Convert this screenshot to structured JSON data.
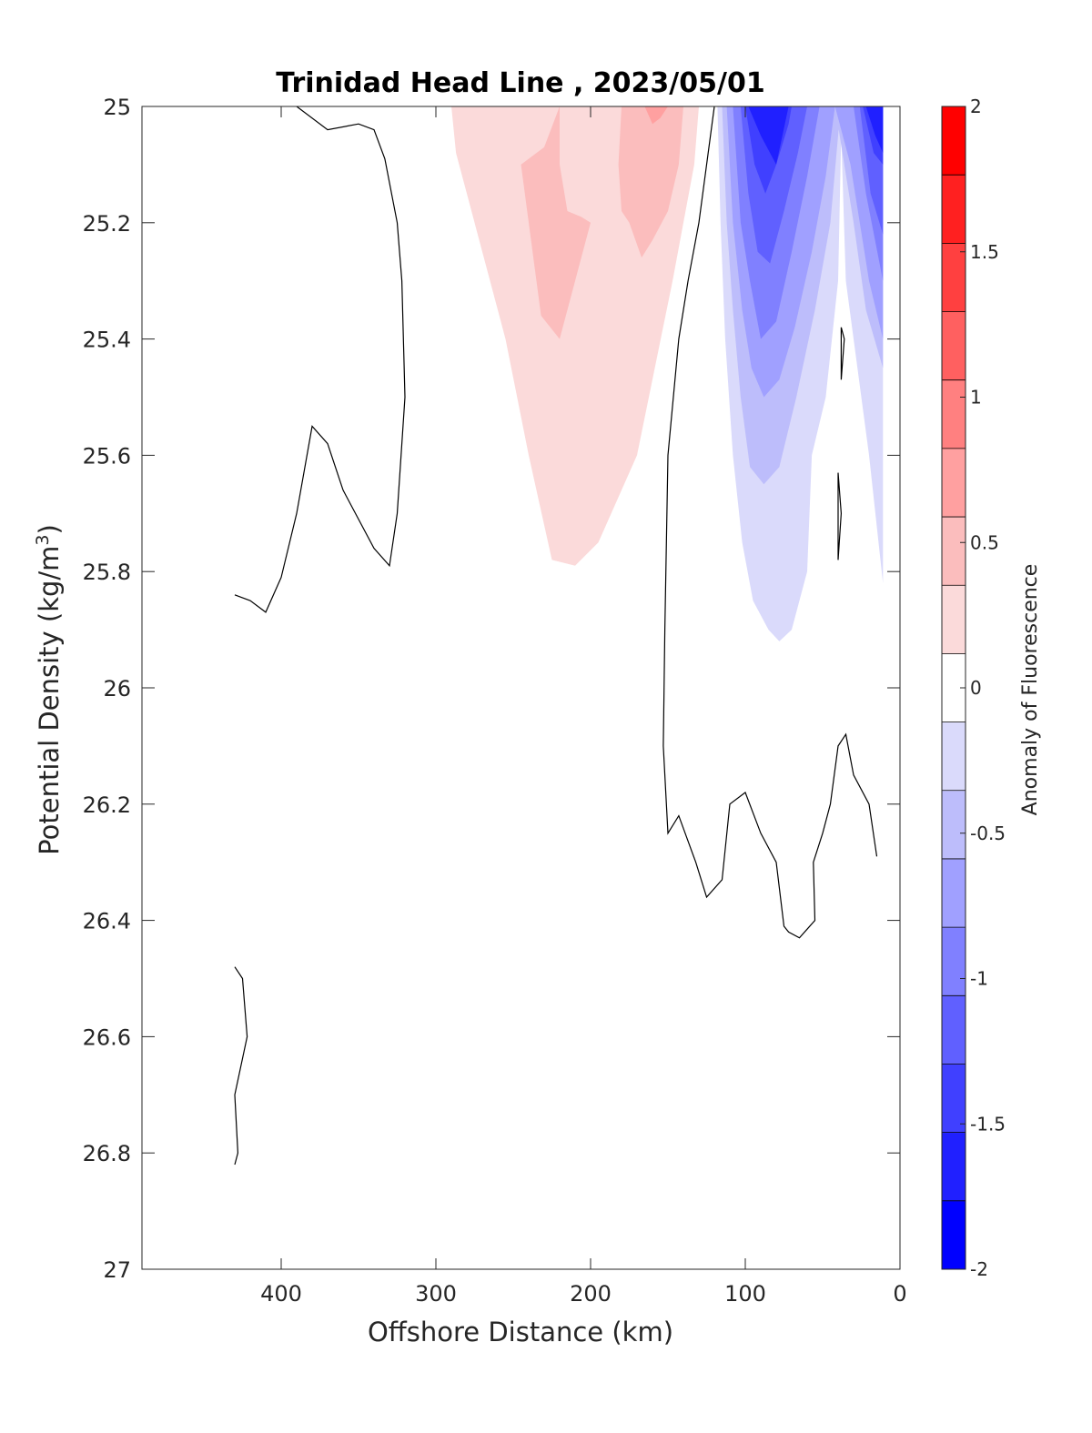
{
  "chart_data": {
    "type": "contour",
    "title": "Trinidad Head Line , 2023/05/01",
    "xlabel": "Offshore Distance (km)",
    "ylabel_main": "Potential Density (kg/m",
    "ylabel_sup": "3",
    "ylabel_close": ")",
    "xlim": [
      490,
      0
    ],
    "ylim": [
      25,
      27
    ],
    "x_reversed": true,
    "y_reversed": true,
    "xticks": [
      400,
      300,
      200,
      100,
      0
    ],
    "yticks": [
      25,
      25.2,
      25.4,
      25.6,
      25.8,
      26,
      26.2,
      26.4,
      26.6,
      26.8,
      27
    ],
    "xtick_labels": [
      "400",
      "300",
      "200",
      "100",
      "0"
    ],
    "ytick_labels": [
      "25",
      "25.2",
      "25.4",
      "25.6",
      "25.8",
      "26",
      "26.2",
      "26.4",
      "26.6",
      "26.8",
      "27"
    ],
    "grid": false,
    "colorbar": {
      "label": "Anomaly of Fluorescence",
      "range": [
        -2,
        2
      ],
      "levels": [
        -2,
        -1.75,
        -1.5,
        -1.25,
        -1,
        -0.75,
        -0.5,
        -0.25,
        0.25,
        0.5,
        0.75,
        1,
        1.25,
        1.5,
        1.75,
        2
      ],
      "colors_bottom_to_top": [
        "#0000ff",
        "#2020ff",
        "#4040ff",
        "#6060ff",
        "#8080ff",
        "#a0a0ff",
        "#bdbdfb",
        "#dadafb",
        "#ffffff",
        "#fbdada",
        "#fbbdbd",
        "#ffa0a0",
        "#ff8080",
        "#ff6060",
        "#ff4040",
        "#ff2020",
        "#ff0000"
      ],
      "tick_values": [
        2,
        1.5,
        1,
        0.5,
        0,
        -0.5,
        -1,
        -1.5,
        -2
      ],
      "tick_labels": [
        "2",
        "1.5",
        "1",
        "0.5",
        "0",
        "-0.5",
        "-1",
        "-1.5",
        "-2"
      ]
    },
    "filled_regions": [
      {
        "name": "positive-0.25",
        "level": 0.25,
        "color": "#fbdada",
        "points": [
          [
            290,
            25
          ],
          [
            130,
            25
          ],
          [
            133,
            25.1
          ],
          [
            147,
            25.3
          ],
          [
            170,
            25.6
          ],
          [
            195,
            25.75
          ],
          [
            210,
            25.79
          ],
          [
            225,
            25.78
          ],
          [
            240,
            25.6
          ],
          [
            255,
            25.4
          ],
          [
            275,
            25.2
          ],
          [
            287,
            25.08
          ]
        ]
      },
      {
        "name": "positive-0.5-a",
        "level": 0.5,
        "color": "#fbbdbd",
        "points": [
          [
            245,
            25.1
          ],
          [
            240,
            25.2
          ],
          [
            235,
            25.3
          ],
          [
            232,
            25.36
          ],
          [
            220,
            25.4
          ],
          [
            210,
            25.3
          ],
          [
            200,
            25.2
          ],
          [
            206,
            25.19
          ],
          [
            215,
            25.18
          ],
          [
            220,
            25.1
          ],
          [
            220,
            25
          ],
          [
            230,
            25.07
          ]
        ]
      },
      {
        "name": "positive-0.5-b",
        "level": 0.5,
        "color": "#fbbdbd",
        "points": [
          [
            180,
            25
          ],
          [
            140,
            25
          ],
          [
            143,
            25.1
          ],
          [
            150,
            25.18
          ],
          [
            160,
            25.23
          ],
          [
            167,
            25.26
          ],
          [
            175,
            25.2
          ],
          [
            180,
            25.18
          ],
          [
            182,
            25.1
          ]
        ]
      },
      {
        "name": "positive-0.75",
        "level": 0.75,
        "color": "#ffa0a0",
        "points": [
          [
            165,
            25
          ],
          [
            150,
            25
          ],
          [
            155,
            25.02
          ],
          [
            160,
            25.03
          ]
        ]
      },
      {
        "name": "negative-0.25",
        "level": -0.25,
        "color": "#dadafb",
        "points": [
          [
            118,
            25
          ],
          [
            116,
            25.2
          ],
          [
            113,
            25.4
          ],
          [
            108,
            25.6
          ],
          [
            102,
            25.75
          ],
          [
            95,
            25.85
          ],
          [
            85,
            25.9
          ],
          [
            78,
            25.92
          ],
          [
            70,
            25.9
          ],
          [
            60,
            25.8
          ],
          [
            57,
            25.6
          ],
          [
            48,
            25.5
          ],
          [
            40,
            25.3
          ],
          [
            38,
            25.05
          ],
          [
            35,
            25.3
          ],
          [
            30,
            25.4
          ],
          [
            20,
            25.6
          ],
          [
            11,
            25.82
          ],
          [
            11,
            25
          ]
        ]
      },
      {
        "name": "negative-0.5",
        "level": -0.5,
        "color": "#bdbdfb",
        "points": [
          [
            115,
            25
          ],
          [
            112,
            25.2
          ],
          [
            108,
            25.35
          ],
          [
            103,
            25.5
          ],
          [
            97,
            25.62
          ],
          [
            88,
            25.65
          ],
          [
            78,
            25.62
          ],
          [
            67,
            25.5
          ],
          [
            55,
            25.35
          ],
          [
            45,
            25.2
          ],
          [
            39,
            25.02
          ],
          [
            42,
            25
          ],
          [
            30,
            25.2
          ],
          [
            22,
            25.35
          ],
          [
            11,
            25.45
          ],
          [
            11,
            25
          ]
        ]
      },
      {
        "name": "negative-0.75",
        "level": -0.75,
        "color": "#a0a0ff",
        "points": [
          [
            112,
            25
          ],
          [
            108,
            25.2
          ],
          [
            102,
            25.35
          ],
          [
            96,
            25.45
          ],
          [
            88,
            25.5
          ],
          [
            78,
            25.47
          ],
          [
            68,
            25.38
          ],
          [
            57,
            25.25
          ],
          [
            48,
            25.12
          ],
          [
            42,
            25
          ],
          [
            32,
            25.1
          ],
          [
            20,
            25.3
          ],
          [
            11,
            25.4
          ],
          [
            11,
            25
          ]
        ]
      },
      {
        "name": "negative-1",
        "level": -1,
        "color": "#8080ff",
        "points": [
          [
            108,
            25
          ],
          [
            103,
            25.2
          ],
          [
            97,
            25.3
          ],
          [
            90,
            25.4
          ],
          [
            80,
            25.37
          ],
          [
            70,
            25.25
          ],
          [
            60,
            25.12
          ],
          [
            52,
            25
          ],
          [
            30,
            25
          ],
          [
            22,
            25.15
          ],
          [
            11,
            25.3
          ],
          [
            11,
            25
          ]
        ]
      },
      {
        "name": "negative-1.25",
        "level": -1.25,
        "color": "#6060ff",
        "points": [
          [
            103,
            25
          ],
          [
            98,
            25.15
          ],
          [
            92,
            25.25
          ],
          [
            84,
            25.27
          ],
          [
            75,
            25.18
          ],
          [
            66,
            25.08
          ],
          [
            60,
            25
          ],
          [
            26,
            25
          ],
          [
            19,
            25.15
          ],
          [
            11,
            25.22
          ],
          [
            11,
            25
          ]
        ]
      },
      {
        "name": "negative-1.5",
        "level": -1.5,
        "color": "#4040ff",
        "points": [
          [
            100,
            25
          ],
          [
            94,
            25.1
          ],
          [
            87,
            25.15
          ],
          [
            80,
            25.1
          ],
          [
            72,
            25.03
          ],
          [
            70,
            25
          ],
          [
            24,
            25
          ],
          [
            17,
            25.08
          ],
          [
            11,
            25.1
          ],
          [
            11,
            25
          ]
        ]
      },
      {
        "name": "negative-1.75",
        "level": -1.75,
        "color": "#2020ff",
        "points": [
          [
            98,
            25
          ],
          [
            90,
            25.05
          ],
          [
            80,
            25.1
          ],
          [
            72,
            25
          ],
          [
            22,
            25
          ],
          [
            16,
            25.05
          ],
          [
            11,
            25.08
          ],
          [
            11,
            25
          ]
        ]
      }
    ],
    "zero_contours": [
      {
        "name": "zero-contour-left",
        "points": [
          [
            430,
            25.84
          ],
          [
            420,
            25.85
          ],
          [
            410,
            25.87
          ],
          [
            400,
            25.81
          ],
          [
            390,
            25.7
          ],
          [
            380,
            25.55
          ],
          [
            370,
            25.58
          ],
          [
            360,
            25.66
          ],
          [
            340,
            25.76
          ],
          [
            330,
            25.79
          ],
          [
            325,
            25.7
          ],
          [
            320,
            25.5
          ],
          [
            322,
            25.3
          ],
          [
            325,
            25.2
          ],
          [
            333,
            25.09
          ],
          [
            340,
            25.04
          ],
          [
            350,
            25.03
          ],
          [
            370,
            25.04
          ],
          [
            390,
            25
          ]
        ]
      },
      {
        "name": "zero-contour-middle",
        "points": [
          [
            120,
            25
          ],
          [
            130,
            25.2
          ],
          [
            137,
            25.3
          ],
          [
            143,
            25.4
          ],
          [
            150,
            25.6
          ],
          [
            152,
            25.9
          ],
          [
            153,
            26.1
          ],
          [
            150,
            26.25
          ],
          [
            143,
            26.22
          ],
          [
            132,
            26.3
          ],
          [
            125,
            26.36
          ],
          [
            115,
            26.33
          ],
          [
            110,
            26.2
          ],
          [
            100,
            26.18
          ],
          [
            90,
            26.25
          ],
          [
            80,
            26.3
          ],
          [
            75,
            26.41
          ],
          [
            72,
            26.42
          ],
          [
            65,
            26.43
          ],
          [
            55,
            26.4
          ],
          [
            56,
            26.3
          ],
          [
            50,
            26.25
          ],
          [
            45,
            26.2
          ],
          [
            40,
            26.1
          ],
          [
            35,
            26.08
          ],
          [
            30,
            26.15
          ],
          [
            20,
            26.2
          ],
          [
            15,
            26.29
          ]
        ]
      },
      {
        "name": "zero-contour-island-upper",
        "points": [
          [
            38,
            25.38
          ],
          [
            36,
            25.4
          ],
          [
            38,
            25.47
          ],
          [
            38,
            25.38
          ]
        ]
      },
      {
        "name": "zero-contour-island-lower",
        "points": [
          [
            40,
            25.63
          ],
          [
            38,
            25.7
          ],
          [
            40,
            25.78
          ],
          [
            40,
            25.63
          ]
        ]
      },
      {
        "name": "zero-contour-deep",
        "points": [
          [
            430,
            26.48
          ],
          [
            425,
            26.5
          ],
          [
            422,
            26.6
          ],
          [
            430,
            26.7
          ],
          [
            428,
            26.8
          ],
          [
            430,
            26.82
          ]
        ]
      }
    ]
  }
}
